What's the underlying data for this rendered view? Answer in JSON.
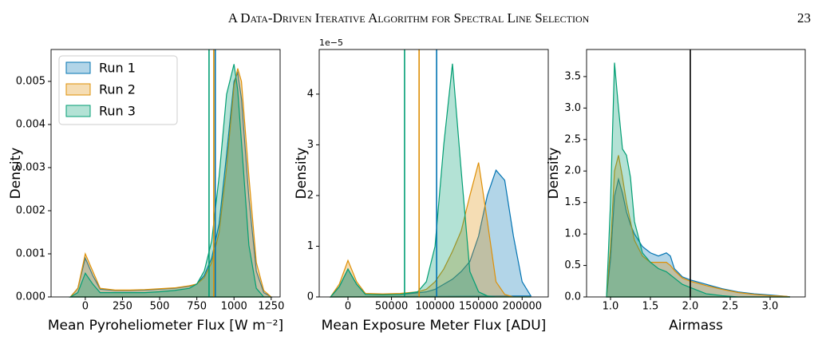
{
  "header": {
    "title": "A Data-Driven Iterative Algorithm for Spectral Line Selection",
    "page": "23"
  },
  "chart_data": [
    {
      "type": "area",
      "xlabel": "Mean Pyroheliometer Flux [W m⁻²]",
      "ylabel": "Density",
      "xlim": [
        -230,
        1310
      ],
      "ylim": [
        0,
        0.00574
      ],
      "xticks": [
        0,
        250,
        500,
        750,
        1000,
        1250
      ],
      "yticks": [
        {
          "value": 0,
          "label": "0.000"
        },
        0.001,
        0.002,
        0.003,
        0.004,
        0.005
      ],
      "legend": "upper left",
      "series": [
        {
          "name": "Run 1",
          "color": "#0173b2",
          "mean": 874,
          "x": [
            -100,
            -50,
            0,
            50,
            100,
            200,
            300,
            400,
            500,
            600,
            700,
            750,
            800,
            850,
            900,
            950,
            1000,
            1025,
            1050,
            1100,
            1150,
            1200,
            1250
          ],
          "values": [
            0,
            0.0002,
            0.0009,
            0.0005,
            0.00018,
            0.00015,
            0.00015,
            0.00016,
            0.00018,
            0.0002,
            0.00025,
            0.0003,
            0.0005,
            0.0009,
            0.0017,
            0.0033,
            0.005,
            0.0052,
            0.0046,
            0.0023,
            0.0006,
            0.0001,
            0
          ]
        },
        {
          "name": "Run 2",
          "color": "#de8f05",
          "mean": 864,
          "x": [
            -100,
            -50,
            0,
            50,
            100,
            200,
            300,
            400,
            500,
            600,
            700,
            750,
            800,
            850,
            900,
            950,
            1000,
            1025,
            1050,
            1100,
            1150,
            1200,
            1250
          ],
          "values": [
            0,
            0.0002,
            0.001,
            0.0006,
            0.0002,
            0.00016,
            0.00016,
            0.00017,
            0.00019,
            0.00021,
            0.00026,
            0.0003,
            0.00045,
            0.0008,
            0.0015,
            0.003,
            0.0049,
            0.0053,
            0.005,
            0.0028,
            0.0008,
            0.00015,
            0
          ]
        },
        {
          "name": "Run 3",
          "color": "#029e73",
          "mean": 832,
          "x": [
            -100,
            -50,
            0,
            50,
            100,
            200,
            300,
            400,
            500,
            600,
            700,
            750,
            800,
            850,
            900,
            950,
            1000,
            1025,
            1050,
            1100,
            1150,
            1200,
            1250
          ],
          "values": [
            0,
            0.0001,
            0.00055,
            0.0003,
            0.0001,
            0.0001,
            0.0001,
            0.0001,
            0.00012,
            0.00015,
            0.0002,
            0.0003,
            0.0006,
            0.0013,
            0.0028,
            0.0047,
            0.0054,
            0.0048,
            0.0036,
            0.0012,
            0.0002,
            0,
            0
          ]
        }
      ]
    },
    {
      "type": "area",
      "xlabel": "Mean Exposure Meter Flux [ADU]",
      "ylabel": "Density",
      "y_offset_label": "1e−5",
      "xlim": [
        -33000,
        230000
      ],
      "ylim": [
        0,
        4.88
      ],
      "xticks": [
        0,
        50000,
        100000,
        150000,
        200000
      ],
      "yticks": [
        0,
        1,
        2,
        3,
        4
      ],
      "series": [
        {
          "name": "Run 1",
          "color": "#0173b2",
          "mean": 101800,
          "x": [
            -20000,
            -10000,
            0,
            10000,
            20000,
            40000,
            60000,
            80000,
            90000,
            100000,
            110000,
            120000,
            130000,
            140000,
            150000,
            160000,
            170000,
            180000,
            190000,
            200000,
            210000
          ],
          "values": [
            0,
            0.2,
            0.55,
            0.25,
            0.05,
            0.05,
            0.05,
            0.08,
            0.1,
            0.15,
            0.25,
            0.35,
            0.5,
            0.7,
            1.2,
            2.0,
            2.5,
            2.3,
            1.2,
            0.3,
            0.02
          ]
        },
        {
          "name": "Run 2",
          "color": "#de8f05",
          "mean": 81700,
          "x": [
            -20000,
            -10000,
            0,
            10000,
            20000,
            40000,
            60000,
            80000,
            90000,
            100000,
            110000,
            120000,
            130000,
            140000,
            150000,
            160000,
            170000,
            180000,
            190000,
            200000,
            210000
          ],
          "values": [
            0,
            0.25,
            0.72,
            0.3,
            0.07,
            0.06,
            0.07,
            0.1,
            0.15,
            0.3,
            0.55,
            0.9,
            1.3,
            2.0,
            2.65,
            1.5,
            0.3,
            0.05,
            0,
            0,
            0
          ]
        },
        {
          "name": "Run 3",
          "color": "#029e73",
          "mean": 65000,
          "x": [
            -20000,
            -10000,
            0,
            10000,
            20000,
            40000,
            60000,
            80000,
            90000,
            100000,
            110000,
            120000,
            130000,
            140000,
            150000,
            160000,
            170000,
            180000,
            190000,
            200000,
            210000
          ],
          "values": [
            0,
            0.2,
            0.55,
            0.25,
            0.05,
            0.04,
            0.05,
            0.1,
            0.3,
            1.0,
            3.0,
            4.6,
            2.5,
            0.5,
            0.1,
            0.02,
            0,
            0,
            0,
            0,
            0
          ]
        }
      ]
    },
    {
      "type": "area",
      "xlabel": "Airmass",
      "ylabel": "Density",
      "xlim": [
        0.7,
        3.44
      ],
      "ylim": [
        0,
        3.93
      ],
      "xticks": [
        {
          "value": 1,
          "label": "1.0"
        },
        1.5,
        {
          "value": 2,
          "label": "2.0"
        },
        2.5,
        {
          "value": 3,
          "label": "3.0"
        }
      ],
      "yticks": [
        {
          "value": 0,
          "label": "0.0"
        },
        0.5,
        {
          "value": 1,
          "label": "1.0"
        },
        1.5,
        {
          "value": 2,
          "label": "2.0"
        },
        2.5,
        {
          "value": 3,
          "label": "3.0"
        },
        3.5
      ],
      "vline": {
        "x": 2.0,
        "color": "#000000"
      },
      "series": [
        {
          "name": "Run 1",
          "color": "#0173b2",
          "x": [
            0.95,
            1.0,
            1.05,
            1.1,
            1.15,
            1.2,
            1.25,
            1.3,
            1.4,
            1.5,
            1.6,
            1.7,
            1.75,
            1.8,
            1.9,
            2.0,
            2.2,
            2.4,
            2.6,
            2.8,
            3.0,
            3.2,
            3.25
          ],
          "values": [
            0,
            0.6,
            1.6,
            1.87,
            1.65,
            1.35,
            1.15,
            1.0,
            0.8,
            0.7,
            0.65,
            0.7,
            0.65,
            0.45,
            0.32,
            0.27,
            0.2,
            0.13,
            0.08,
            0.05,
            0.03,
            0.01,
            0
          ]
        },
        {
          "name": "Run 2",
          "color": "#de8f05",
          "x": [
            0.95,
            1.0,
            1.05,
            1.1,
            1.15,
            1.2,
            1.25,
            1.3,
            1.4,
            1.5,
            1.6,
            1.7,
            1.75,
            1.8,
            1.9,
            2.0,
            2.2,
            2.4,
            2.6,
            2.8,
            3.0,
            3.2,
            3.25
          ],
          "values": [
            0,
            0.8,
            2.0,
            2.25,
            1.9,
            1.5,
            1.2,
            0.9,
            0.65,
            0.55,
            0.55,
            0.55,
            0.5,
            0.42,
            0.3,
            0.25,
            0.18,
            0.12,
            0.07,
            0.04,
            0.02,
            0.01,
            0
          ]
        },
        {
          "name": "Run 3",
          "color": "#029e73",
          "x": [
            0.95,
            1.0,
            1.05,
            1.1,
            1.15,
            1.2,
            1.25,
            1.3,
            1.4,
            1.5,
            1.6,
            1.7,
            1.75,
            1.8,
            1.9,
            2.0,
            2.2,
            2.4,
            2.6,
            2.8,
            3.0,
            3.2,
            3.25
          ],
          "values": [
            0,
            1.5,
            3.72,
            3.0,
            2.35,
            2.25,
            1.9,
            1.2,
            0.7,
            0.55,
            0.45,
            0.4,
            0.35,
            0.3,
            0.2,
            0.15,
            0.05,
            0.02,
            0,
            0,
            0,
            0,
            0
          ]
        }
      ]
    }
  ]
}
